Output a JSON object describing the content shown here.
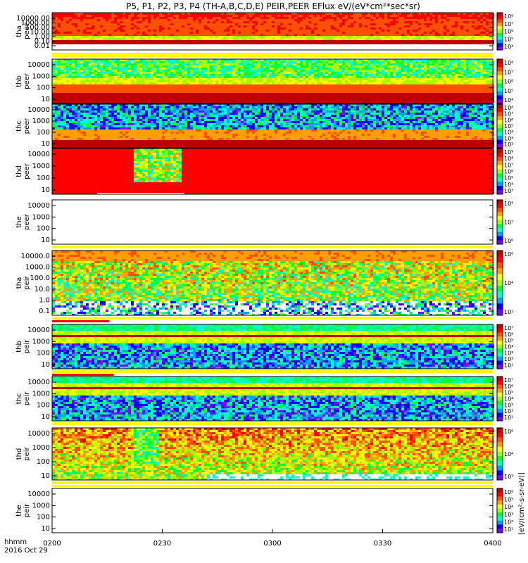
{
  "title": "P5, P1, P2, P3, P4 (TH-A,B,C,D,E) PEIR,PEER EFlux eV/(eV*cm²*sec*sr)",
  "time_axis": {
    "ticks": [
      "0200",
      "0230",
      "0300",
      "0330",
      "0400"
    ],
    "unit_label": "hhmm",
    "date_label": "2016 Oct 29",
    "range_minutes": [
      0,
      120
    ]
  },
  "colorbar_unit_label": "[eV/(cm²-s-sr-eV)]",
  "colors": {
    "scale": [
      "#7f00ff",
      "#0000ff",
      "#00a0ff",
      "#00ffd0",
      "#00ff40",
      "#a0ff00",
      "#ffff00",
      "#ffa000",
      "#ff5000",
      "#ff0000",
      "#c00000"
    ],
    "flag_yellow": "#ffff00",
    "flag_red": "#ff0000"
  },
  "chart_data": {
    "type": "heatmap",
    "x": "time (hhmm)",
    "panels": [
      {
        "id": "tha-peer",
        "ylabel_probe": "tha",
        "ylabel_species": "peer",
        "ylim": [
          0.01,
          30000
        ],
        "yticks": [
          "10000.00",
          "1000.00",
          "100.00",
          "10.00",
          "1.00",
          "0.10",
          "0.01"
        ],
        "cbar_ticks": [
          "10⁸",
          "10⁷",
          "10⁶",
          "10⁵",
          "10⁴"
        ],
        "has_data": true,
        "profile": "tha_peer"
      },
      {
        "id": "thb-peer",
        "ylabel_probe": "thb",
        "ylabel_species": "peer",
        "ylim": [
          10,
          20000
        ],
        "yticks": [
          "10000",
          "1000",
          "100",
          "10"
        ],
        "cbar_ticks": [
          "10⁸",
          "10⁷",
          "10⁶",
          "10⁵",
          "10⁴"
        ],
        "has_data": true,
        "profile": "thb_peer"
      },
      {
        "id": "thc-peer",
        "ylabel_probe": "thc",
        "ylabel_species": "peer",
        "ylim": [
          10,
          20000
        ],
        "yticks": [
          "10000",
          "1000",
          "100",
          "10"
        ],
        "cbar_ticks": [
          "10⁸",
          "10⁷",
          "10⁶",
          "10⁵",
          "10⁴",
          "10³",
          "10²"
        ],
        "has_data": true,
        "profile": "thc_peer"
      },
      {
        "id": "thd-peer",
        "ylabel_probe": "thd",
        "ylabel_species": "peer",
        "ylim": [
          7,
          20000
        ],
        "yticks": [
          "10000",
          "1000",
          "100",
          "10"
        ],
        "cbar_ticks": [
          "10⁹",
          "10⁸",
          "10⁷",
          "10⁶",
          "10⁵",
          "10⁴",
          "10³"
        ],
        "has_data": true,
        "profile": "thd_peer"
      },
      {
        "id": "the-peer",
        "ylabel_probe": "the",
        "ylabel_species": "peer",
        "ylim": [
          7,
          20000
        ],
        "yticks": [
          "10000",
          "1000",
          "100",
          "10"
        ],
        "cbar_ticks": [
          "10⁸",
          "10⁷",
          "10⁶"
        ],
        "has_data": false,
        "profile": "none"
      },
      {
        "id": "tha-peir",
        "ylabel_probe": "tha",
        "ylabel_species": "peir",
        "ylim": [
          0.1,
          30000
        ],
        "yticks": [
          "10000.0",
          "1000.0",
          "100.0",
          "10.0",
          "1.0",
          "0.1"
        ],
        "cbar_ticks": [
          "10⁶",
          "10⁴",
          "10²"
        ],
        "has_data": true,
        "profile": "tha_peir"
      },
      {
        "id": "thb-peir",
        "ylabel_probe": "thb",
        "ylabel_species": "peir",
        "ylim": [
          7,
          20000
        ],
        "yticks": [
          "10000",
          "1000",
          "100",
          "10"
        ],
        "cbar_ticks": [
          "10⁷",
          "10⁶",
          "10⁵",
          "10⁴",
          "10³",
          "10²",
          "10¹"
        ],
        "has_data": true,
        "profile": "thb_peir"
      },
      {
        "id": "thc-peir",
        "ylabel_probe": "thc",
        "ylabel_species": "peir",
        "ylim": [
          7,
          20000
        ],
        "yticks": [
          "10000",
          "1000",
          "100",
          "10"
        ],
        "cbar_ticks": [
          "10⁷",
          "10⁶",
          "10⁵",
          "10⁴",
          "10³",
          "10²",
          "10¹"
        ],
        "has_data": true,
        "profile": "thc_peir"
      },
      {
        "id": "thd-peir",
        "ylabel_probe": "thd",
        "ylabel_species": "peir",
        "ylim": [
          5,
          20000
        ],
        "yticks": [
          "10000",
          "1000",
          "100",
          "10"
        ],
        "cbar_ticks": [
          "10⁶",
          "10⁴",
          "10²"
        ],
        "has_data": true,
        "profile": "thd_peir"
      },
      {
        "id": "the-peir",
        "ylabel_probe": "the",
        "ylabel_species": "peir",
        "ylim": [
          5,
          20000
        ],
        "yticks": [
          "10000",
          "1000",
          "100",
          "10"
        ],
        "cbar_ticks": [
          "10⁶",
          "10⁵",
          "10⁴",
          "10³",
          "10²",
          "10¹"
        ],
        "has_data": false,
        "profile": "none"
      }
    ]
  }
}
